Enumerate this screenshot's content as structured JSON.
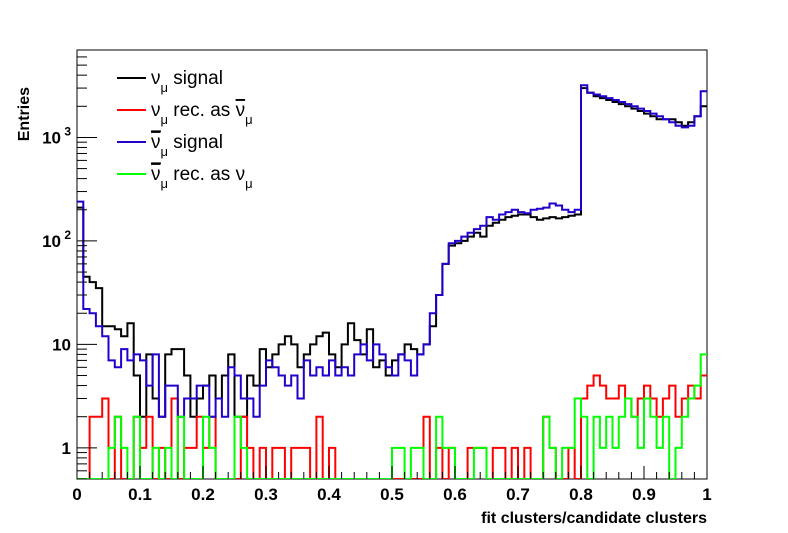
{
  "chart_data": {
    "type": "line",
    "title": "",
    "xlabel": "fit clusters/candidate clusters",
    "ylabel": "Entries",
    "xlim": [
      0,
      1
    ],
    "ylim": [
      0.5,
      7000
    ],
    "yscale": "log",
    "x_ticks": [
      "0",
      "0.1",
      "0.2",
      "0.3",
      "0.4",
      "0.5",
      "0.6",
      "0.7",
      "0.8",
      "0.9",
      "1"
    ],
    "y_ticks": [
      {
        "value": 1,
        "label": "1"
      },
      {
        "value": 10,
        "label": "10"
      },
      {
        "value": 100,
        "label": "10",
        "exp": "2"
      },
      {
        "value": 1000,
        "label": "10",
        "exp": "3"
      }
    ],
    "grid": false,
    "legend_position": "top-left",
    "bin_width": 0.01,
    "series": [
      {
        "name_parts": {
          "base": "ν",
          "sub": "μ",
          "rest": " signal"
        },
        "color": "#000000",
        "values": [
          210,
          45,
          40,
          35,
          15,
          15,
          14,
          12,
          16,
          5,
          2,
          8,
          3,
          2,
          8,
          9,
          9,
          5,
          2,
          3,
          4,
          5,
          3,
          5,
          8,
          2,
          2,
          5,
          4,
          9,
          6,
          8,
          10,
          12,
          10,
          6,
          8,
          10,
          12,
          13,
          8,
          6,
          10,
          16,
          11,
          8,
          14,
          6,
          7,
          5,
          7,
          8,
          10,
          9,
          8,
          10,
          15,
          30,
          60,
          90,
          95,
          100,
          110,
          120,
          110,
          140,
          150,
          160,
          170,
          175,
          180,
          180,
          170,
          160,
          165,
          170,
          165,
          170,
          175,
          180,
          3000,
          2700,
          2500,
          2400,
          2300,
          2200,
          2100,
          2000,
          1900,
          1800,
          1700,
          1600,
          1500,
          1500,
          1500,
          1400,
          1300,
          1400,
          1600,
          2000
        ]
      },
      {
        "name_parts": {
          "base": "ν",
          "sub": "μ",
          "rest": " rec. as ",
          "base2": "ν",
          "bar2": true,
          "sub2": "μ"
        },
        "color": "#ff0000",
        "values": [
          0.5,
          0.5,
          2,
          2,
          3,
          0.5,
          2,
          0.5,
          0.5,
          2,
          1,
          2,
          0.5,
          1,
          0.5,
          3,
          0.5,
          1,
          1,
          2,
          1,
          2,
          0.5,
          0.5,
          0.5,
          0.5,
          2,
          1,
          0.5,
          1,
          0.5,
          1,
          1,
          0.5,
          1,
          1,
          1,
          0.5,
          2,
          0.5,
          1,
          0.5,
          0.5,
          0.5,
          0.5,
          0.5,
          0.5,
          0.5,
          0.5,
          0.5,
          0.5,
          0.5,
          0.5,
          0.5,
          0.5,
          2,
          0.5,
          1,
          0.5,
          1,
          0.5,
          0.5,
          1,
          1,
          1,
          0.5,
          1,
          1,
          0.5,
          1,
          0.5,
          1,
          0.5,
          0.5,
          2,
          1,
          0.5,
          0.5,
          1,
          0.5,
          3,
          4,
          5,
          4,
          3,
          3,
          4,
          3,
          2,
          3,
          4,
          3,
          2,
          3,
          4,
          2,
          3,
          4,
          3,
          5
        ]
      },
      {
        "name_parts": {
          "bar": true,
          "base": "ν",
          "sub": "μ",
          "rest": " signal"
        },
        "color": "#2200cc",
        "values": [
          240,
          22,
          20,
          15,
          12,
          7,
          6,
          9,
          7,
          8,
          7,
          4,
          8,
          2,
          4,
          4,
          2,
          3,
          3,
          4,
          4,
          2,
          3,
          2,
          6,
          5,
          3,
          3,
          2,
          4,
          7,
          6,
          5,
          4,
          5,
          3,
          7,
          5,
          6,
          5,
          7,
          5,
          6,
          5,
          8,
          10,
          7,
          10,
          8,
          6,
          5,
          8,
          7,
          5,
          8,
          10,
          20,
          30,
          60,
          95,
          100,
          110,
          120,
          130,
          140,
          170,
          160,
          180,
          190,
          200,
          190,
          185,
          200,
          205,
          210,
          230,
          220,
          200,
          190,
          200,
          3200,
          2700,
          2600,
          2500,
          2400,
          2300,
          2200,
          2100,
          2000,
          1900,
          1800,
          1700,
          1600,
          1500,
          1400,
          1300,
          1250,
          1300,
          1600,
          2800
        ]
      },
      {
        "name_parts": {
          "bar": true,
          "base": "ν",
          "sub": "μ",
          "rest": " rec. as ",
          "base2": "ν",
          "bar2": false,
          "sub2": "μ"
        },
        "color": "#00ff00",
        "values": [
          0.5,
          0.5,
          0.5,
          0.5,
          0.5,
          1,
          2,
          1,
          0.5,
          2,
          0.5,
          0.5,
          1,
          0.5,
          1,
          0.5,
          2,
          0.5,
          0.5,
          0.5,
          2,
          1,
          0.5,
          0.5,
          0.5,
          2,
          1,
          0.5,
          0.5,
          0.5,
          0.5,
          0.5,
          0.5,
          0.5,
          0.5,
          0.5,
          0.5,
          0.5,
          0.5,
          0.5,
          0.5,
          0.5,
          0.5,
          0.5,
          0.5,
          0.5,
          0.5,
          0.5,
          0.5,
          0.5,
          1,
          1,
          0.5,
          1,
          1,
          0.5,
          0.5,
          2,
          1,
          1,
          0.5,
          0.5,
          0.5,
          1,
          1,
          0.5,
          0.5,
          0.5,
          0.5,
          0.5,
          0.5,
          0.5,
          0.5,
          0.5,
          2,
          1,
          0.5,
          1,
          1,
          3,
          2,
          0.5,
          2,
          1,
          2,
          1,
          2,
          3,
          2,
          1,
          3,
          2,
          1,
          2,
          0.5,
          1,
          2,
          3,
          4,
          8
        ]
      }
    ]
  }
}
